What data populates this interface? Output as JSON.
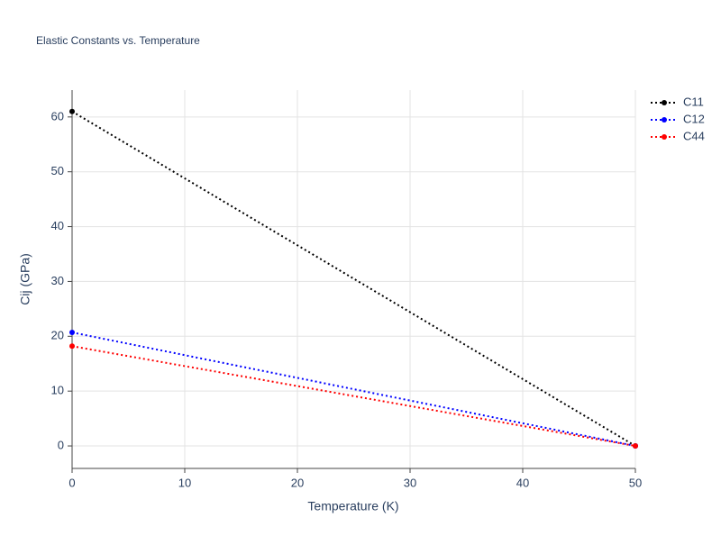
{
  "chart_data": {
    "type": "line",
    "title": "Elastic Constants vs. Temperature",
    "x_label": "Temperature (K)",
    "y_label": "Cij (GPa)",
    "x": [
      0,
      50
    ],
    "series": [
      {
        "name": "C11",
        "color": "#000000",
        "values": [
          61.0,
          0
        ]
      },
      {
        "name": "C12",
        "color": "#0000ff",
        "values": [
          20.7,
          0
        ]
      },
      {
        "name": "C44",
        "color": "#ff0000",
        "values": [
          18.2,
          0
        ]
      }
    ],
    "xlim": [
      0,
      50
    ],
    "xticks": [
      0,
      10,
      20,
      30,
      40,
      50
    ],
    "ylim": [
      -4.1,
      64.9
    ],
    "yticks": [
      0,
      10,
      20,
      30,
      40,
      50,
      60
    ],
    "grid": true,
    "legend": "top-right"
  }
}
